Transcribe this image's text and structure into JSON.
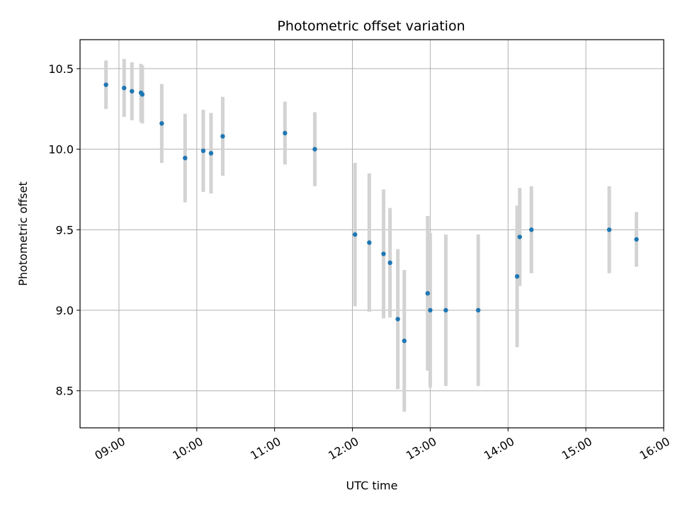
{
  "chart_data": {
    "type": "scatter",
    "title": "Photometric offset variation",
    "xlabel": "UTC time",
    "ylabel": "Photometric offset",
    "x_ticks": [
      "09:00",
      "10:00",
      "11:00",
      "12:00",
      "13:00",
      "14:00",
      "15:00",
      "16:00"
    ],
    "y_ticks": [
      "8.5",
      "9.0",
      "9.5",
      "10.0",
      "10.5"
    ],
    "xlim": [
      "08:30",
      "16:00"
    ],
    "ylim": [
      8.27,
      10.68
    ],
    "grid": true,
    "colors": {
      "point": "#1f77b4",
      "errorbar": "#d3d3d3",
      "grid": "#b0b0b0"
    },
    "points": [
      {
        "t": "08:50",
        "y": 10.4,
        "err": 0.15
      },
      {
        "t": "09:04",
        "y": 10.38,
        "err": 0.18
      },
      {
        "t": "09:10",
        "y": 10.36,
        "err": 0.18
      },
      {
        "t": "09:17",
        "y": 10.35,
        "err": 0.18
      },
      {
        "t": "09:18",
        "y": 10.34,
        "err": 0.18
      },
      {
        "t": "09:33",
        "y": 10.16,
        "err": 0.245
      },
      {
        "t": "09:51",
        "y": 9.945,
        "err": 0.275
      },
      {
        "t": "10:05",
        "y": 9.99,
        "err": 0.255
      },
      {
        "t": "10:11",
        "y": 9.975,
        "err": 0.25
      },
      {
        "t": "10:20",
        "y": 10.08,
        "err": 0.245
      },
      {
        "t": "11:08",
        "y": 10.1,
        "err": 0.195
      },
      {
        "t": "11:31",
        "y": 10.0,
        "err": 0.23
      },
      {
        "t": "12:02",
        "y": 9.47,
        "err": 0.445
      },
      {
        "t": "12:13",
        "y": 9.42,
        "err": 0.43
      },
      {
        "t": "12:24",
        "y": 9.35,
        "err": 0.4
      },
      {
        "t": "12:29",
        "y": 9.295,
        "err": 0.34
      },
      {
        "t": "12:35",
        "y": 8.945,
        "err": 0.435
      },
      {
        "t": "12:40",
        "y": 8.81,
        "err": 0.44
      },
      {
        "t": "12:58",
        "y": 9.105,
        "err": 0.48
      },
      {
        "t": "13:00",
        "y": 9.0,
        "err": 0.48
      },
      {
        "t": "13:12",
        "y": 9.0,
        "err": 0.47
      },
      {
        "t": "13:37",
        "y": 9.0,
        "err": 0.47
      },
      {
        "t": "14:07",
        "y": 9.21,
        "err": 0.44
      },
      {
        "t": "14:09",
        "y": 9.455,
        "err": 0.305
      },
      {
        "t": "14:18",
        "y": 9.5,
        "err": 0.27
      },
      {
        "t": "15:18",
        "y": 9.5,
        "err": 0.27
      },
      {
        "t": "15:39",
        "y": 9.44,
        "err": 0.17
      }
    ]
  }
}
